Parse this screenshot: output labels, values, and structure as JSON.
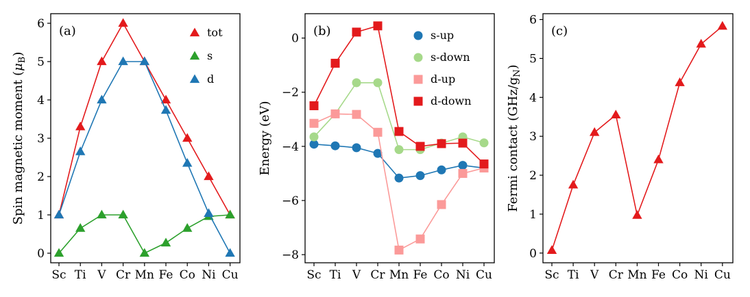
{
  "chart_data": [
    {
      "type": "line",
      "panel_label": "(a)",
      "ylabel_main": "Spin magnetic moment (",
      "ylabel_mu": "μ",
      "ylabel_sub": "B",
      "ylabel_close": ")",
      "xlabel": "",
      "categories": [
        "Sc",
        "Ti",
        "V",
        "Cr",
        "Mn",
        "Fe",
        "Co",
        "Ni",
        "Cu"
      ],
      "ylim": [
        -0.25,
        6.25
      ],
      "yticks": [
        0,
        1,
        2,
        3,
        4,
        5,
        6
      ],
      "legend_position": "top-right",
      "series": [
        {
          "name": "tot",
          "marker": "triangle",
          "color": "#e31a1c",
          "values": [
            1,
            3.3,
            5,
            6,
            5,
            4,
            3,
            2,
            1
          ]
        },
        {
          "name": "s",
          "marker": "triangle",
          "color": "#2ca02c",
          "values": [
            0,
            0.65,
            1,
            1,
            0,
            0.27,
            0.65,
            0.96,
            1
          ]
        },
        {
          "name": "d",
          "marker": "triangle",
          "color": "#1f77b4",
          "values": [
            1,
            2.65,
            4,
            5,
            5,
            3.73,
            2.35,
            1.04,
            0
          ]
        }
      ]
    },
    {
      "type": "line",
      "panel_label": "(b)",
      "ylabel": "Energy (eV)",
      "xlabel": "",
      "categories": [
        "Sc",
        "Ti",
        "V",
        "Cr",
        "Mn",
        "Fe",
        "Co",
        "Ni",
        "Cu"
      ],
      "ylim": [
        -8.3,
        0.9
      ],
      "yticks": [
        -8,
        -6,
        -4,
        -2,
        0
      ],
      "ytick_labels": [
        "−8",
        "−6",
        "−4",
        "−2",
        "0"
      ],
      "legend_position": "top-right",
      "series": [
        {
          "name": "s-up",
          "marker": "circle",
          "color": "#1f77b4",
          "values": [
            -3.92,
            -3.98,
            -4.05,
            -4.26,
            -5.17,
            -5.08,
            -4.87,
            -4.7,
            -4.8
          ]
        },
        {
          "name": "s-down",
          "marker": "circle",
          "color": "#a6d98a",
          "values": [
            -3.65,
            -2.8,
            -1.65,
            -1.65,
            -4.12,
            -4.12,
            -3.88,
            -3.65,
            -3.87
          ]
        },
        {
          "name": "d-up",
          "marker": "square",
          "color": "#fb9a99",
          "values": [
            -3.15,
            -2.8,
            -2.82,
            -3.48,
            -7.83,
            -7.42,
            -6.15,
            -5.0,
            -4.8
          ]
        },
        {
          "name": "d-down",
          "marker": "square",
          "color": "#e31a1c",
          "values": [
            -2.5,
            -0.93,
            0.22,
            0.45,
            -3.45,
            -4.0,
            -3.9,
            -3.88,
            -4.65
          ]
        }
      ]
    },
    {
      "type": "line",
      "panel_label": "(c)",
      "ylabel_main": "Fermi contact (GHz/g",
      "ylabel_sub": "N",
      "ylabel_close": ")",
      "xlabel": "",
      "categories": [
        "Sc",
        "Ti",
        "V",
        "Cr",
        "Mn",
        "Fe",
        "Co",
        "Ni",
        "Cu"
      ],
      "ylim": [
        -0.25,
        6.15
      ],
      "yticks": [
        0,
        1,
        2,
        3,
        4,
        5,
        6
      ],
      "series": [
        {
          "name": "Fermi contact",
          "marker": "triangle",
          "color": "#e31a1c",
          "values": [
            0.07,
            1.75,
            3.1,
            3.55,
            0.97,
            2.4,
            4.38,
            5.37,
            5.83
          ]
        }
      ]
    }
  ]
}
